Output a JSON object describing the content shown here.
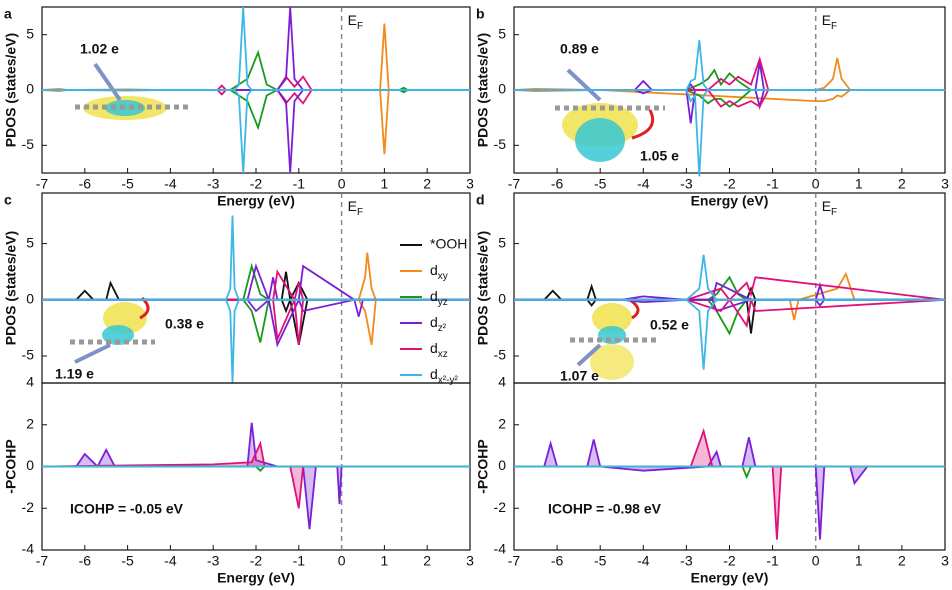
{
  "chart_data": [
    {
      "type": "line",
      "panel_label": "a",
      "ylabel": "PDOS (states/eV)",
      "xlabel": "Energy (eV)",
      "xlim": [
        -7,
        3
      ],
      "xticks": [
        -7,
        -6,
        -5,
        -4,
        -3,
        -2,
        -1,
        0,
        1,
        2,
        3
      ],
      "ylim": [
        -7.5,
        7.5
      ],
      "yticks": [
        -5,
        0,
        5
      ],
      "fermi_level": 0,
      "fermi_label": "EF",
      "annotations": [
        {
          "text": "1.02 e",
          "color": "#111111"
        }
      ],
      "series": [
        {
          "color": "#f28a1c",
          "x": [
            -7,
            -6.6,
            -6.4,
            -5,
            -4.2,
            0.9,
            1.0,
            1.1,
            3
          ],
          "values": [
            0,
            0.1,
            0,
            0.05,
            0,
            0,
            6,
            0,
            0
          ],
          "down": [
            0,
            -0.1,
            0,
            -0.05,
            0,
            0,
            -5.8,
            0,
            0
          ]
        },
        {
          "color": "#1a9a1a",
          "x": [
            -7,
            -2.6,
            -2.2,
            -1.95,
            -1.75,
            -1.5,
            1.35,
            1.45,
            1.55,
            3
          ],
          "values": [
            0,
            0,
            1,
            3.4,
            0.5,
            0,
            0,
            0.2,
            0,
            0
          ],
          "down": [
            0,
            0,
            -1,
            -3.4,
            -0.5,
            0,
            0,
            -0.2,
            0,
            0
          ]
        },
        {
          "color": "#e0107a",
          "x": [
            -7,
            -2.9,
            -2.8,
            -2.7,
            -1.5,
            -1.3,
            -1.1,
            -0.9,
            -0.7,
            3
          ],
          "values": [
            0,
            0,
            0.4,
            0,
            0,
            1.2,
            0.3,
            1.2,
            0,
            0
          ],
          "down": [
            0,
            0,
            -0.4,
            0,
            0,
            -1.2,
            -0.3,
            -1.2,
            0,
            0
          ]
        },
        {
          "color": "#7b1fd6",
          "x": [
            -7,
            -1.5,
            -1.3,
            -1.2,
            -1.1,
            -0.9,
            3
          ],
          "values": [
            0,
            0,
            1,
            7.5,
            1,
            0,
            0
          ],
          "down": [
            0,
            0,
            -1,
            -7.5,
            -1,
            0,
            0
          ]
        },
        {
          "color": "#3cb8e8",
          "x": [
            -7,
            -2.5,
            -2.4,
            -2.3,
            -2.2,
            -2.1,
            3
          ],
          "values": [
            0,
            0,
            0.5,
            7.5,
            0.5,
            0,
            0
          ],
          "down": [
            0,
            0,
            -0.5,
            -7.5,
            -0.5,
            0,
            0
          ]
        }
      ]
    },
    {
      "type": "line",
      "panel_label": "b",
      "ylabel": "PDOS (states/eV)",
      "xlabel": "Energy (eV)",
      "xlim": [
        -7,
        3
      ],
      "xticks": [
        -7,
        -6,
        -5,
        -4,
        -3,
        -2,
        -1,
        0,
        1,
        2,
        3
      ],
      "ylim": [
        -7.5,
        7.5
      ],
      "yticks": [
        -5,
        0,
        5
      ],
      "fermi_level": 0,
      "fermi_label": "EF",
      "annotations": [
        {
          "text": "0.89 e",
          "color": "#111111"
        },
        {
          "text": "1.05 e",
          "color": "#e02020"
        }
      ],
      "series": [
        {
          "color": "#f28a1c",
          "x": [
            -7,
            -6.5,
            -5,
            0,
            0.2,
            0.4,
            0.5,
            0.6,
            0.8,
            3
          ],
          "values": [
            0,
            0.1,
            0,
            0,
            0.2,
            1,
            2.9,
            1,
            0,
            0
          ],
          "down": [
            0,
            -0.1,
            0,
            -1,
            -1,
            -0.8,
            -0.5,
            -0.6,
            0,
            0
          ]
        },
        {
          "color": "#1a9a1a",
          "x": [
            -7,
            -3,
            -2.7,
            -2.5,
            -2.35,
            -2.2,
            -2.0,
            -1.8,
            -1.5,
            3
          ],
          "values": [
            0,
            0,
            0.5,
            1,
            1.8,
            0.5,
            1.5,
            0.8,
            0,
            0
          ],
          "down": [
            0,
            0,
            -0.5,
            -1.2,
            -0.8,
            -0.8,
            -1.5,
            -1,
            0,
            0
          ]
        },
        {
          "color": "#7b1fd6",
          "x": [
            -7,
            -4.2,
            -4,
            -3.8,
            -3,
            -2.9,
            -2.8,
            -1.4,
            -1.3,
            -1.2,
            3
          ],
          "values": [
            0,
            0,
            0.8,
            0,
            0,
            0.5,
            0,
            0,
            2.5,
            0,
            0
          ],
          "down": [
            0,
            0,
            -0.3,
            0,
            0,
            -3,
            0,
            0,
            -1.5,
            0,
            0
          ]
        },
        {
          "color": "#e0107a",
          "x": [
            -7,
            -2.5,
            -2.2,
            -2,
            -1.8,
            -1.5,
            -1.3,
            -1.1,
            3
          ],
          "values": [
            0,
            0,
            1,
            0.5,
            1.2,
            0.5,
            2.8,
            0,
            0
          ],
          "down": [
            0,
            0,
            -1.5,
            -1,
            -1.5,
            -1,
            -1.5,
            0,
            0
          ]
        },
        {
          "color": "#3cb8e8",
          "x": [
            -7,
            -3,
            -2.9,
            -2.8,
            -2.7,
            -2.6,
            -2.5,
            3
          ],
          "values": [
            0,
            0,
            0.8,
            1,
            4.5,
            0.5,
            0,
            0
          ],
          "down": [
            0,
            0,
            -1,
            -0.5,
            -7.8,
            -0.5,
            0,
            0
          ]
        }
      ]
    },
    {
      "type": "line",
      "panel_label": "c",
      "ylabel": "PDOS (states/eV)",
      "xlim": [
        -7,
        3
      ],
      "ylim": [
        -7.4,
        9.5
      ],
      "yticks": [
        -5,
        0,
        5
      ],
      "fermi_level": 0,
      "fermi_label": "EF",
      "legend": "right",
      "annotations": [
        {
          "text": "0.38 e",
          "color": "#e02020"
        },
        {
          "text": "1.19 e",
          "color": "#111111"
        }
      ],
      "series": [
        {
          "name": "*OOH",
          "color": "#111111",
          "x": [
            -7,
            -6.2,
            -6,
            -5.8,
            -5.5,
            -5.4,
            -5.2,
            -1.4,
            -1.3,
            -1.2,
            -1,
            -0.8,
            3
          ],
          "values": [
            0,
            0,
            0.8,
            0,
            0,
            1.5,
            0,
            0,
            2.5,
            0,
            1.5,
            0,
            0
          ],
          "down": [
            0,
            0,
            0,
            0,
            0,
            0,
            0,
            0,
            -1,
            0,
            -4,
            0,
            0
          ]
        },
        {
          "name": "dxy",
          "color": "#f28a1c",
          "x": [
            -7,
            0.4,
            0.55,
            0.6,
            0.7,
            0.8,
            3
          ],
          "values": [
            0,
            0,
            2,
            4.2,
            1,
            0,
            0
          ],
          "down": [
            0,
            0,
            -1,
            -2,
            -4,
            0,
            0
          ]
        },
        {
          "name": "dyz",
          "color": "#1a9a1a",
          "x": [
            -7,
            -2.3,
            -2.1,
            -1.9,
            -1.7,
            3
          ],
          "values": [
            0,
            0,
            3,
            0.5,
            0,
            0
          ],
          "down": [
            0,
            0,
            -1,
            -3.8,
            0,
            0
          ]
        },
        {
          "name": "dz²",
          "color": "#7b1fd6",
          "x": [
            -7,
            -2.2,
            -2.0,
            -1.7,
            -1.6,
            -1.5,
            -1.0,
            -0.9,
            0.3,
            0.4,
            0.5,
            3
          ],
          "values": [
            0,
            0,
            3,
            0,
            2,
            0,
            0,
            3,
            0,
            0,
            0,
            0
          ],
          "down": [
            0,
            0,
            -1,
            0,
            -2,
            -4,
            0,
            -1,
            0,
            -1.5,
            0,
            0
          ]
        },
        {
          "name": "dxz",
          "color": "#e0107a",
          "x": [
            -7,
            -2.2,
            -1.6,
            -1.5,
            -1.1,
            -1.0,
            -0.9,
            3
          ],
          "values": [
            0,
            0,
            0,
            2.5,
            0,
            1.5,
            0,
            0
          ],
          "down": [
            0,
            0,
            0,
            -3.5,
            0,
            -4,
            0,
            0
          ]
        },
        {
          "name": "dx²-y²",
          "color": "#3cb8e8",
          "x": [
            -7,
            -2.7,
            -2.6,
            -2.55,
            -2.5,
            -2.4,
            3
          ],
          "values": [
            0,
            0,
            1,
            7.5,
            1,
            0,
            0
          ],
          "down": [
            0,
            0,
            -1,
            -7.4,
            -1,
            0,
            0
          ]
        }
      ]
    },
    {
      "type": "line",
      "ylabel": "-PCOHP",
      "xlabel": "Energy (eV)",
      "xlim": [
        -7,
        3
      ],
      "xticks": [
        -7,
        -6,
        -5,
        -4,
        -3,
        -2,
        -1,
        0,
        1,
        2,
        3
      ],
      "ylim": [
        -4,
        4
      ],
      "yticks": [
        -4,
        -2,
        0,
        2,
        4
      ],
      "fermi_level": 0,
      "annotations": [
        {
          "text": "ICOHP = -0.05 eV",
          "color": "#111111"
        }
      ],
      "series": [
        {
          "color": "#7b1fd6",
          "fill": true,
          "x": [
            -7,
            -6.2,
            -6,
            -5.7,
            -5.5,
            -5.3,
            -4,
            -2.2,
            -2.1,
            -2.0,
            -1.5,
            -0.9,
            -0.75,
            -0.6,
            -0.1,
            -0.05,
            0,
            3
          ],
          "values": [
            0,
            0,
            0.6,
            0,
            0.8,
            0,
            0,
            0,
            2.1,
            0.3,
            0,
            0,
            -3,
            0,
            0,
            -1.8,
            0,
            0
          ]
        },
        {
          "color": "#e0107a",
          "fill": true,
          "x": [
            -7,
            -3,
            -2.1,
            -1.9,
            -1.8,
            -1.2,
            -1.0,
            -0.9,
            -0.7,
            3
          ],
          "values": [
            0,
            0.1,
            0.2,
            1.1,
            0,
            0,
            -2,
            0,
            0,
            0
          ]
        },
        {
          "color": "#1a9a1a",
          "x": [
            -7,
            -2,
            -1.9,
            -1.8,
            3
          ],
          "values": [
            0,
            0,
            -0.2,
            0,
            0
          ]
        },
        {
          "color": "#3cb8e8",
          "x": [
            -7,
            3
          ],
          "values": [
            0,
            0
          ]
        }
      ]
    },
    {
      "type": "line",
      "panel_label": "d",
      "ylabel": "PDOS (states/eV)",
      "xlim": [
        -7,
        3
      ],
      "ylim": [
        -7.4,
        9.5
      ],
      "yticks": [
        -5,
        0,
        5
      ],
      "fermi_level": 0,
      "fermi_label": "EF",
      "annotations": [
        {
          "text": "0.52 e",
          "color": "#e02020"
        },
        {
          "text": "1.07 e",
          "color": "#111111"
        }
      ],
      "series": [
        {
          "color": "#111111",
          "x": [
            -7,
            -6.3,
            -6.1,
            -5.9,
            -5.3,
            -5.2,
            -5.1,
            -1.6,
            -1.5,
            -1.4,
            -1.2,
            3
          ],
          "values": [
            0,
            0,
            0.8,
            0,
            0,
            1.2,
            0,
            0,
            1,
            0,
            0,
            0
          ],
          "down": [
            0,
            0,
            0,
            0,
            0,
            -0.5,
            0,
            0,
            -3,
            0,
            0,
            0
          ]
        },
        {
          "color": "#f28a1c",
          "x": [
            -7,
            -0.6,
            -0.5,
            -0.4,
            0.5,
            0.7,
            0.9,
            3
          ],
          "values": [
            0,
            0,
            0,
            0,
            1,
            2.3,
            0,
            0
          ],
          "down": [
            0,
            0,
            -1.8,
            0,
            0,
            0,
            0,
            0
          ]
        },
        {
          "color": "#1a9a1a",
          "x": [
            -7,
            -2.5,
            -2.3,
            -2.0,
            -1.8,
            -1.6,
            3
          ],
          "values": [
            0,
            0,
            0.5,
            2,
            0.5,
            0,
            0
          ],
          "down": [
            0,
            0,
            -1,
            -3,
            -1,
            0,
            0
          ]
        },
        {
          "color": "#7b1fd6",
          "x": [
            -7,
            -4.5,
            -4,
            -3,
            -2.4,
            -2.3,
            -1.5,
            0,
            0.1,
            0.2,
            3
          ],
          "values": [
            0,
            0,
            0.3,
            0,
            0,
            1.5,
            0,
            0,
            1.3,
            0,
            0
          ],
          "down": [
            0,
            0,
            -0.2,
            0,
            0,
            -1,
            0,
            0,
            -0.5,
            0,
            0
          ]
        },
        {
          "color": "#e0107a",
          "x": [
            -7,
            -3,
            -2.2,
            -2.0,
            -1.6,
            -1.5,
            -1.4,
            3
          ],
          "values": [
            0,
            0,
            1,
            0,
            1.5,
            0.5,
            2,
            0
          ],
          "down": [
            0,
            0,
            -1,
            0,
            -2.3,
            0,
            -1,
            0
          ]
        },
        {
          "color": "#3cb8e8",
          "x": [
            -7,
            -3,
            -2.7,
            -2.6,
            -2.5,
            -2.3,
            3
          ],
          "values": [
            0,
            0,
            1,
            4,
            1,
            0,
            0
          ],
          "down": [
            0,
            0,
            -1,
            -6.2,
            -1,
            0,
            0
          ]
        }
      ]
    },
    {
      "type": "line",
      "ylabel": "-PCOHP",
      "xlabel": "Energy (eV)",
      "xlim": [
        -7,
        3
      ],
      "xticks": [
        -7,
        -6,
        -5,
        -4,
        -3,
        -2,
        -1,
        0,
        1,
        2,
        3
      ],
      "ylim": [
        -4,
        4
      ],
      "yticks": [
        -4,
        -2,
        0,
        2,
        4
      ],
      "fermi_level": 0,
      "annotations": [
        {
          "text": "ICOHP = -0.98 eV",
          "color": "#111111"
        }
      ],
      "series": [
        {
          "color": "#7b1fd6",
          "fill": true,
          "x": [
            -7,
            -6.3,
            -6.15,
            -6,
            -5.3,
            -5.15,
            -5,
            -4,
            -2.5,
            -2.3,
            -2.2,
            -1.7,
            -1.55,
            -1.4,
            0,
            0.1,
            0.2,
            0.8,
            0.9,
            1.2,
            3
          ],
          "values": [
            0,
            0,
            1.1,
            0,
            0,
            1.3,
            0,
            -0.2,
            0,
            0.7,
            0,
            0,
            1.4,
            0,
            0,
            -3.5,
            0,
            0,
            -0.8,
            0,
            0
          ]
        },
        {
          "color": "#e0107a",
          "fill": true,
          "x": [
            -7,
            -2.9,
            -2.6,
            -2.4,
            -1.0,
            -0.9,
            -0.8,
            3
          ],
          "values": [
            0,
            0,
            1.7,
            0,
            0,
            -3.5,
            0,
            0
          ]
        },
        {
          "color": "#1a9a1a",
          "x": [
            -7,
            -1.7,
            -1.6,
            -1.5,
            3
          ],
          "values": [
            0,
            0,
            -0.5,
            0,
            0
          ]
        },
        {
          "color": "#3cb8e8",
          "x": [
            -7,
            3
          ],
          "values": [
            0,
            0
          ]
        }
      ]
    }
  ]
}
